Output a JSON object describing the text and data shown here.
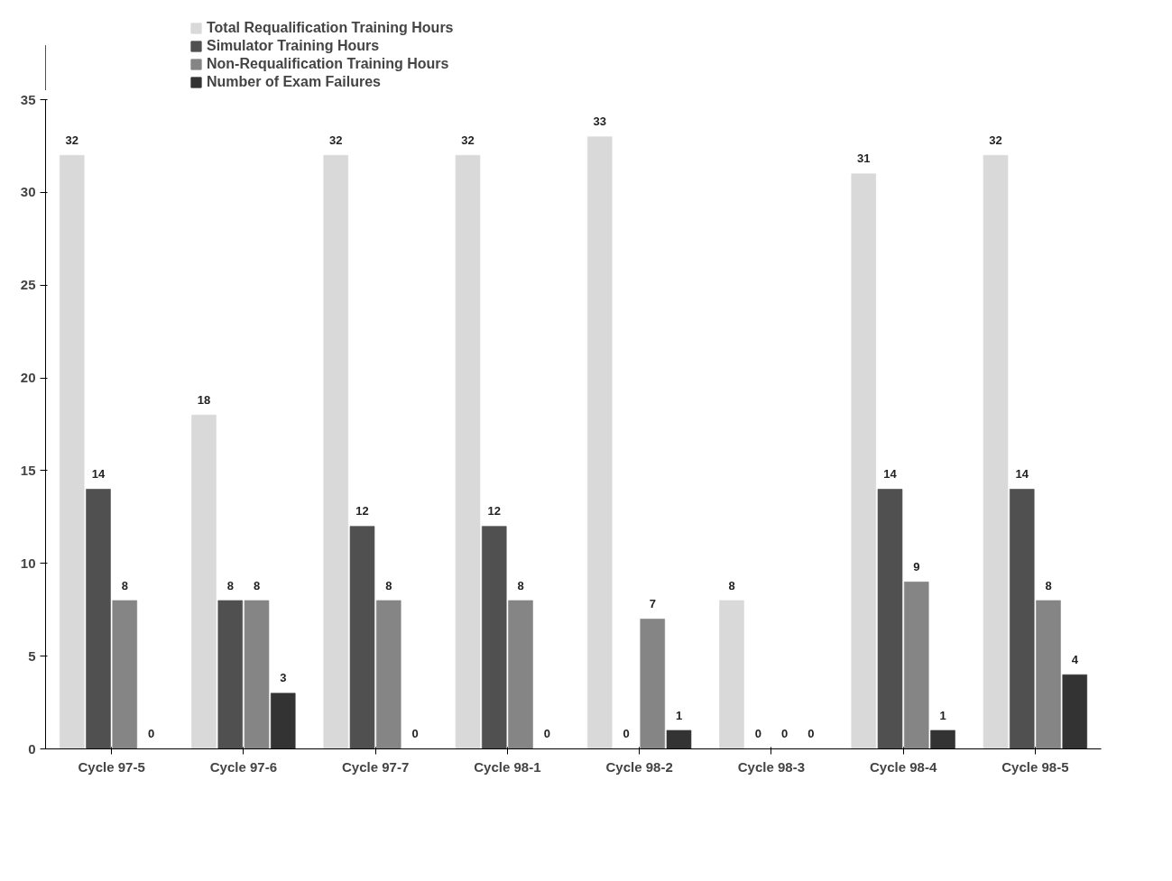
{
  "chart_data": {
    "type": "bar",
    "categories": [
      "Cycle 97-5",
      "Cycle 97-6",
      "Cycle 97-7",
      "Cycle 98-1",
      "Cycle 98-2",
      "Cycle 98-3",
      "Cycle 98-4",
      "Cycle 98-5"
    ],
    "series": [
      {
        "name": "Total Requalification Training Hours",
        "color": "#d9d9d9",
        "values": [
          32,
          18,
          32,
          32,
          33,
          8,
          31,
          32
        ]
      },
      {
        "name": "Simulator Training Hours",
        "color": "#505050",
        "values": [
          14,
          8,
          12,
          12,
          0,
          0,
          14,
          14
        ]
      },
      {
        "name": "Non-Requalification Training Hours",
        "color": "#858585",
        "values": [
          8,
          8,
          8,
          8,
          7,
          0,
          9,
          8
        ]
      },
      {
        "name": "Number of Exam Failures",
        "color": "#333333",
        "values": [
          0,
          3,
          0,
          0,
          1,
          0,
          1,
          4
        ]
      }
    ],
    "ylim": [
      0,
      35
    ],
    "yticks": [
      0,
      5,
      10,
      15,
      20,
      25,
      30,
      35
    ],
    "grid": false,
    "legend": "top",
    "data_labels": true
  }
}
